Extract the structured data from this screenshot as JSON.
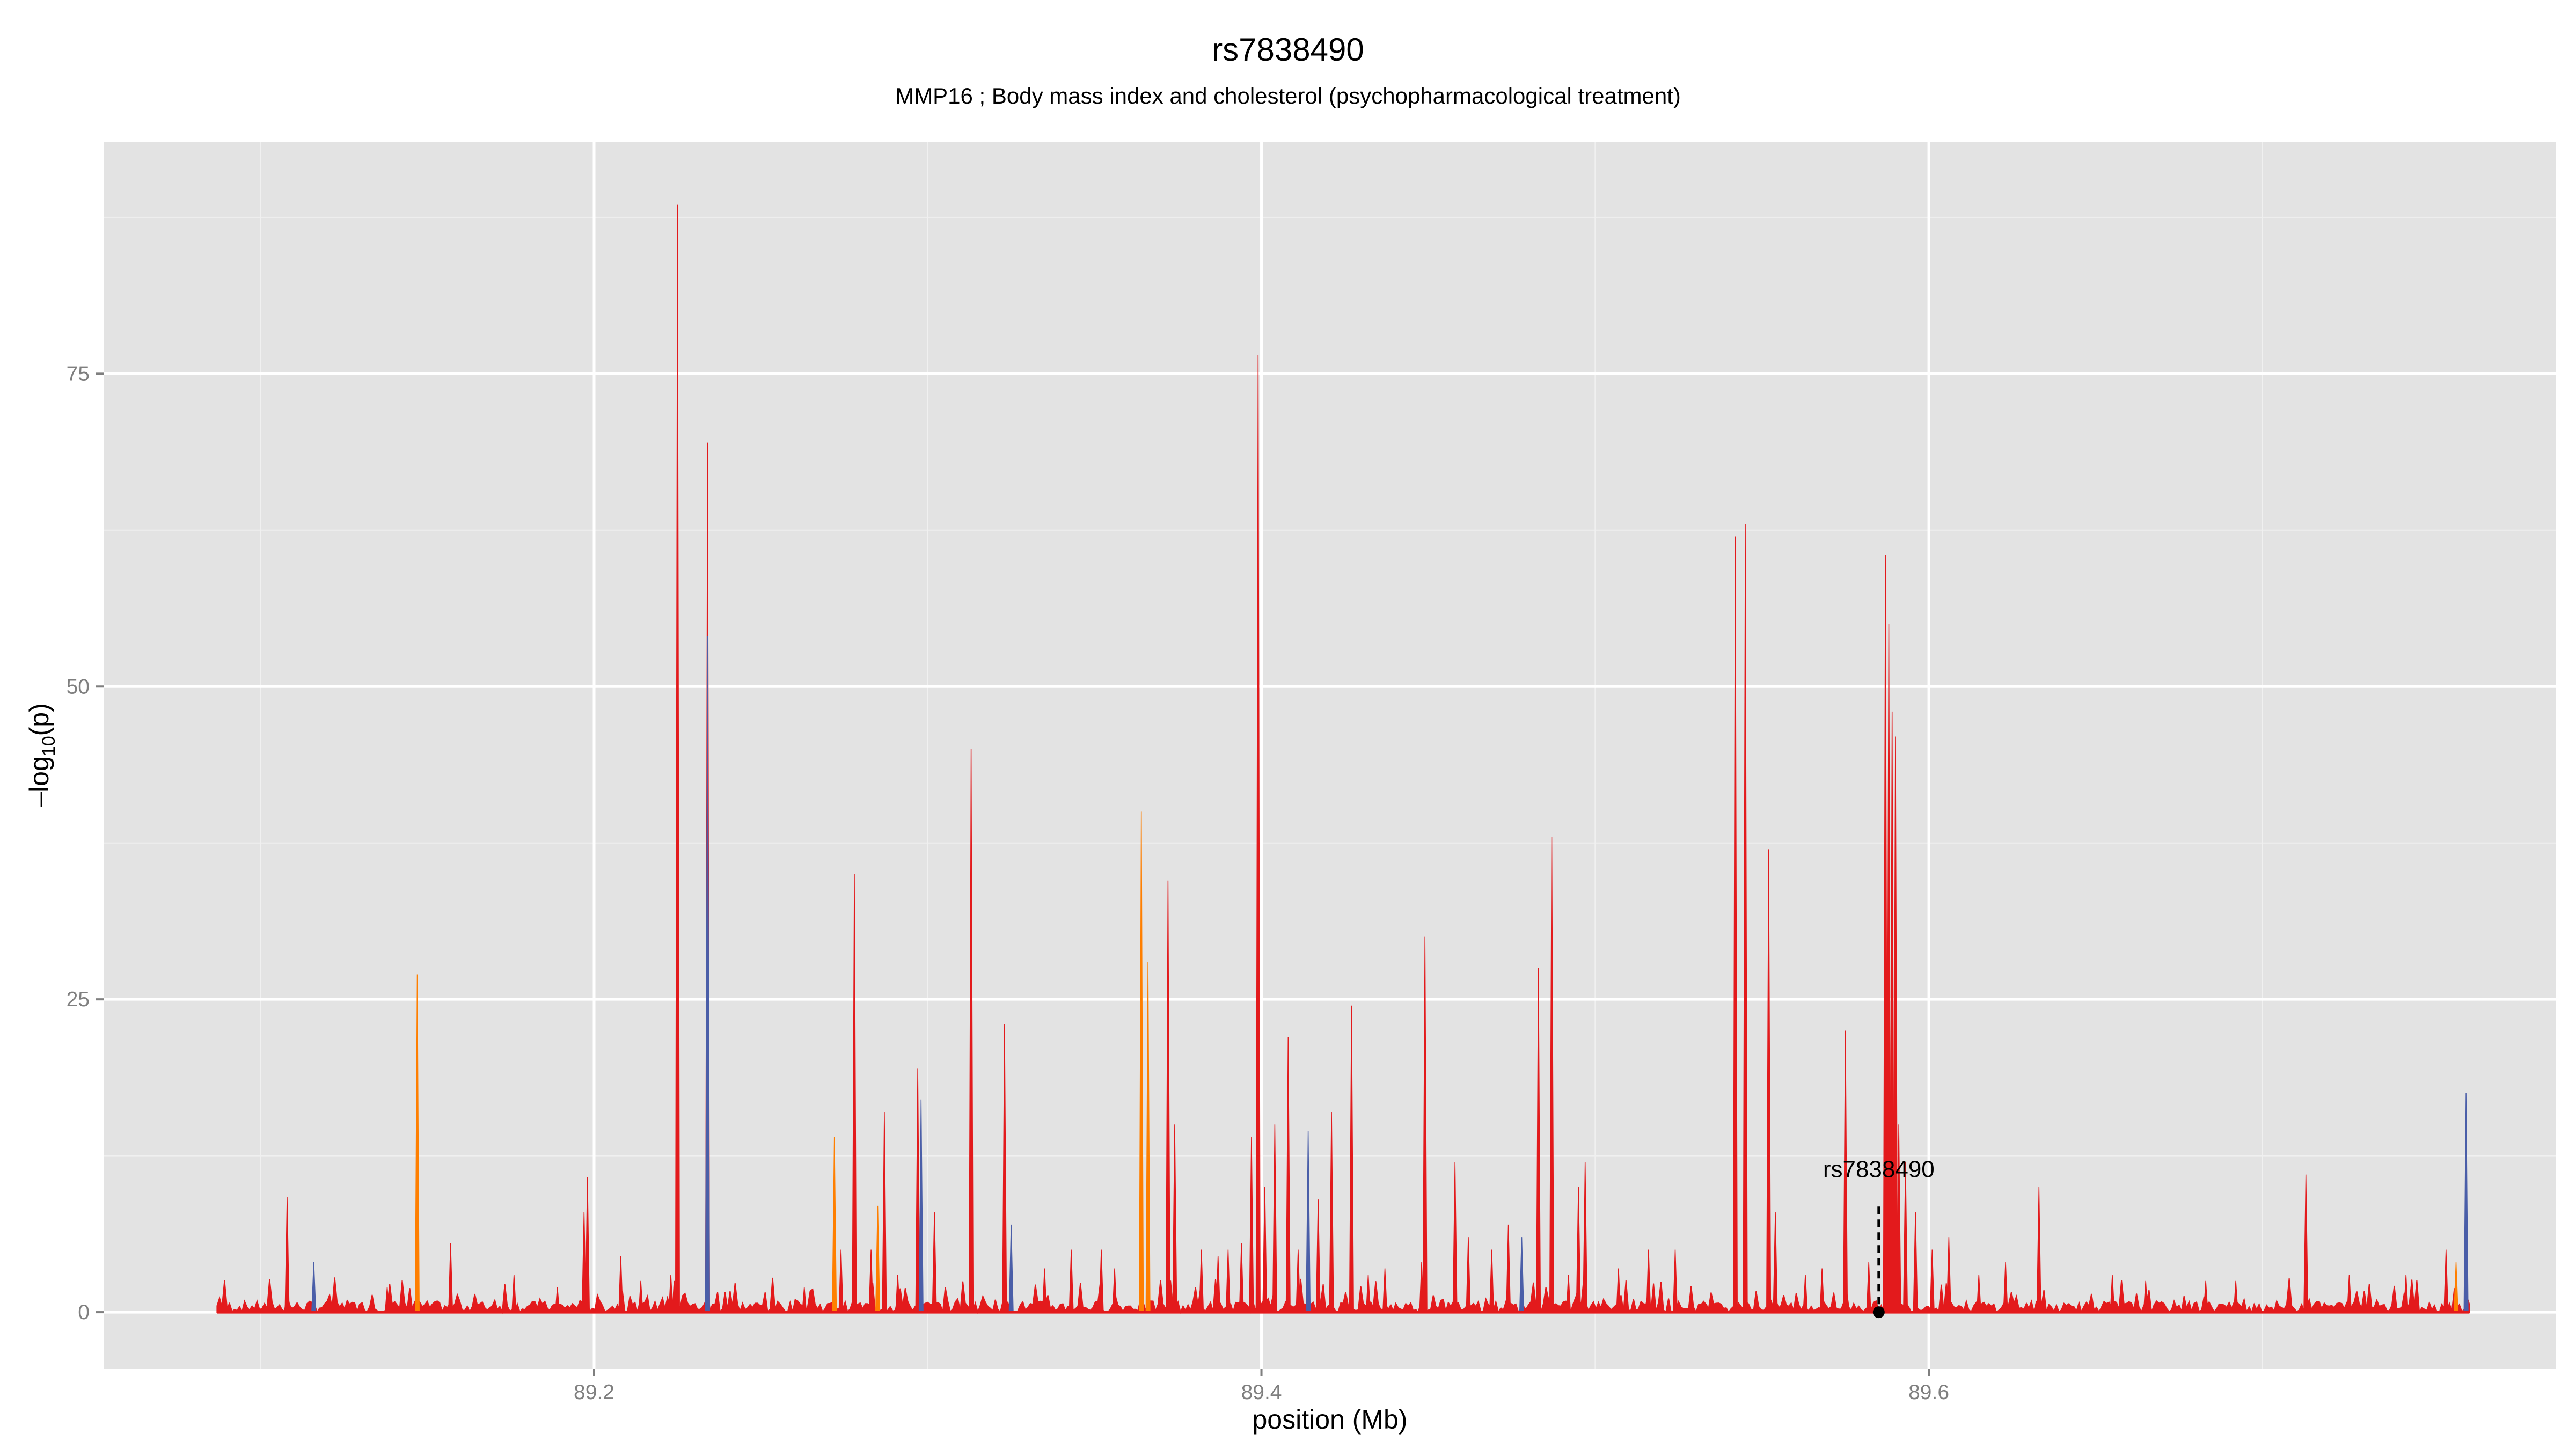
{
  "chart_data": {
    "type": "area",
    "title": "rs7838490",
    "subtitle": "MMP16 ; Body mass index and cholesterol (psychopharmacological treatment)",
    "xlabel": "position (Mb)",
    "ylabel": "-log10(p)",
    "ylabel_parts": {
      "prefix": "–log",
      "sub": "10",
      "suffix": "(p)"
    },
    "xlim": [
      89.053,
      89.788
    ],
    "ylim": [
      -4.5,
      93.5
    ],
    "x_ticks": [
      89.2,
      89.4,
      89.6
    ],
    "x_tick_labels": [
      "89.2",
      "89.4",
      "89.6"
    ],
    "x_minor_ticks": [
      89.1,
      89.3,
      89.5,
      89.7
    ],
    "y_ticks": [
      0,
      25,
      50,
      75
    ],
    "y_tick_labels": [
      "0",
      "25",
      "50",
      "75"
    ],
    "y_minor_ticks": [
      12.5,
      37.5,
      62.5,
      87.5
    ],
    "grid": true,
    "legend": "none",
    "x_range_data": [
      89.087,
      89.762
    ],
    "colors": {
      "panel_background": "#e3e3e3",
      "grid_major": "#ffffff",
      "grid_minor": "#f0f0f0",
      "red": "#e31a1c",
      "orange": "#ff7f00",
      "blue": "#4a5ea8",
      "baseline": "#e31a1c"
    },
    "peaks": [
      {
        "x": 89.108,
        "y": 9.2,
        "color": "red"
      },
      {
        "x": 89.116,
        "y": 4.0,
        "color": "blue"
      },
      {
        "x": 89.138,
        "y": 2.0,
        "color": "red"
      },
      {
        "x": 89.147,
        "y": 27.0,
        "color": "orange"
      },
      {
        "x": 89.157,
        "y": 5.5,
        "color": "red"
      },
      {
        "x": 89.176,
        "y": 3.0,
        "color": "red"
      },
      {
        "x": 89.189,
        "y": 2.0,
        "color": "red"
      },
      {
        "x": 89.197,
        "y": 8.0,
        "color": "red"
      },
      {
        "x": 89.198,
        "y": 10.8,
        "color": "red"
      },
      {
        "x": 89.208,
        "y": 4.5,
        "color": "red"
      },
      {
        "x": 89.214,
        "y": 2.5,
        "color": "red"
      },
      {
        "x": 89.224,
        "y": 2.5,
        "color": "red"
      },
      {
        "x": 89.223,
        "y": 3.0,
        "color": "red"
      },
      {
        "x": 89.225,
        "y": 88.5,
        "color": "red"
      },
      {
        "x": 89.234,
        "y": 69.5,
        "color": "red"
      },
      {
        "x": 89.234,
        "y": 54.0,
        "color": "blue"
      },
      {
        "x": 89.263,
        "y": 2.0,
        "color": "red"
      },
      {
        "x": 89.272,
        "y": 14.0,
        "color": "orange"
      },
      {
        "x": 89.274,
        "y": 5.0,
        "color": "red"
      },
      {
        "x": 89.278,
        "y": 35.0,
        "color": "red"
      },
      {
        "x": 89.283,
        "y": 5.0,
        "color": "red"
      },
      {
        "x": 89.285,
        "y": 8.5,
        "color": "orange"
      },
      {
        "x": 89.287,
        "y": 16.0,
        "color": "red"
      },
      {
        "x": 89.291,
        "y": 3.0,
        "color": "red"
      },
      {
        "x": 89.297,
        "y": 19.5,
        "color": "red"
      },
      {
        "x": 89.298,
        "y": 17.0,
        "color": "blue"
      },
      {
        "x": 89.302,
        "y": 8.0,
        "color": "red"
      },
      {
        "x": 89.313,
        "y": 45.0,
        "color": "red"
      },
      {
        "x": 89.323,
        "y": 23.0,
        "color": "red"
      },
      {
        "x": 89.325,
        "y": 7.0,
        "color": "blue"
      },
      {
        "x": 89.335,
        "y": 3.5,
        "color": "red"
      },
      {
        "x": 89.343,
        "y": 5.0,
        "color": "red"
      },
      {
        "x": 89.352,
        "y": 5.0,
        "color": "red"
      },
      {
        "x": 89.356,
        "y": 3.5,
        "color": "red"
      },
      {
        "x": 89.364,
        "y": 40.0,
        "color": "orange"
      },
      {
        "x": 89.366,
        "y": 28.0,
        "color": "orange"
      },
      {
        "x": 89.372,
        "y": 34.5,
        "color": "red"
      },
      {
        "x": 89.374,
        "y": 15.0,
        "color": "red"
      },
      {
        "x": 89.382,
        "y": 5.0,
        "color": "red"
      },
      {
        "x": 89.387,
        "y": 4.5,
        "color": "red"
      },
      {
        "x": 89.39,
        "y": 5.0,
        "color": "red"
      },
      {
        "x": 89.394,
        "y": 5.5,
        "color": "red"
      },
      {
        "x": 89.397,
        "y": 14.0,
        "color": "red"
      },
      {
        "x": 89.399,
        "y": 76.5,
        "color": "red"
      },
      {
        "x": 89.401,
        "y": 10.0,
        "color": "red"
      },
      {
        "x": 89.404,
        "y": 15.0,
        "color": "red"
      },
      {
        "x": 89.408,
        "y": 22.0,
        "color": "red"
      },
      {
        "x": 89.411,
        "y": 5.0,
        "color": "red"
      },
      {
        "x": 89.414,
        "y": 14.5,
        "color": "blue"
      },
      {
        "x": 89.417,
        "y": 9.0,
        "color": "red"
      },
      {
        "x": 89.421,
        "y": 16.0,
        "color": "red"
      },
      {
        "x": 89.427,
        "y": 24.5,
        "color": "red"
      },
      {
        "x": 89.432,
        "y": 3.0,
        "color": "red"
      },
      {
        "x": 89.437,
        "y": 3.5,
        "color": "red"
      },
      {
        "x": 89.448,
        "y": 4.0,
        "color": "red"
      },
      {
        "x": 89.449,
        "y": 30.0,
        "color": "red"
      },
      {
        "x": 89.458,
        "y": 12.0,
        "color": "red"
      },
      {
        "x": 89.462,
        "y": 6.0,
        "color": "red"
      },
      {
        "x": 89.469,
        "y": 5.0,
        "color": "red"
      },
      {
        "x": 89.474,
        "y": 7.0,
        "color": "red"
      },
      {
        "x": 89.478,
        "y": 6.0,
        "color": "blue"
      },
      {
        "x": 89.483,
        "y": 27.5,
        "color": "red"
      },
      {
        "x": 89.487,
        "y": 38.0,
        "color": "red"
      },
      {
        "x": 89.492,
        "y": 3.0,
        "color": "red"
      },
      {
        "x": 89.495,
        "y": 10.0,
        "color": "red"
      },
      {
        "x": 89.497,
        "y": 12.0,
        "color": "red"
      },
      {
        "x": 89.507,
        "y": 3.5,
        "color": "red"
      },
      {
        "x": 89.516,
        "y": 5.0,
        "color": "red"
      },
      {
        "x": 89.524,
        "y": 5.0,
        "color": "red"
      },
      {
        "x": 89.542,
        "y": 62.0,
        "color": "red"
      },
      {
        "x": 89.545,
        "y": 63.0,
        "color": "red"
      },
      {
        "x": 89.552,
        "y": 37.0,
        "color": "red"
      },
      {
        "x": 89.554,
        "y": 8.0,
        "color": "red"
      },
      {
        "x": 89.563,
        "y": 3.0,
        "color": "red"
      },
      {
        "x": 89.568,
        "y": 3.5,
        "color": "red"
      },
      {
        "x": 89.575,
        "y": 22.5,
        "color": "red"
      },
      {
        "x": 89.582,
        "y": 4.0,
        "color": "red"
      },
      {
        "x": 89.587,
        "y": 60.5,
        "color": "red"
      },
      {
        "x": 89.588,
        "y": 55.0,
        "color": "red"
      },
      {
        "x": 89.589,
        "y": 48.0,
        "color": "red"
      },
      {
        "x": 89.59,
        "y": 46.0,
        "color": "red"
      },
      {
        "x": 89.591,
        "y": 15.0,
        "color": "red"
      },
      {
        "x": 89.593,
        "y": 12.0,
        "color": "red"
      },
      {
        "x": 89.596,
        "y": 8.0,
        "color": "red"
      },
      {
        "x": 89.601,
        "y": 5.0,
        "color": "red"
      },
      {
        "x": 89.606,
        "y": 6.0,
        "color": "red"
      },
      {
        "x": 89.615,
        "y": 3.0,
        "color": "red"
      },
      {
        "x": 89.623,
        "y": 4.0,
        "color": "red"
      },
      {
        "x": 89.633,
        "y": 10.0,
        "color": "red"
      },
      {
        "x": 89.655,
        "y": 3.0,
        "color": "red"
      },
      {
        "x": 89.665,
        "y": 2.5,
        "color": "red"
      },
      {
        "x": 89.683,
        "y": 2.5,
        "color": "red"
      },
      {
        "x": 89.692,
        "y": 2.5,
        "color": "red"
      },
      {
        "x": 89.713,
        "y": 11.0,
        "color": "red"
      },
      {
        "x": 89.726,
        "y": 3.0,
        "color": "red"
      },
      {
        "x": 89.743,
        "y": 3.0,
        "color": "red"
      },
      {
        "x": 89.755,
        "y": 5.0,
        "color": "red"
      },
      {
        "x": 89.758,
        "y": 4.0,
        "color": "orange"
      },
      {
        "x": 89.761,
        "y": 17.5,
        "color": "blue"
      }
    ],
    "highlight": {
      "label": "rs7838490",
      "x": 89.585,
      "y": 0,
      "label_y": 10.8
    }
  }
}
